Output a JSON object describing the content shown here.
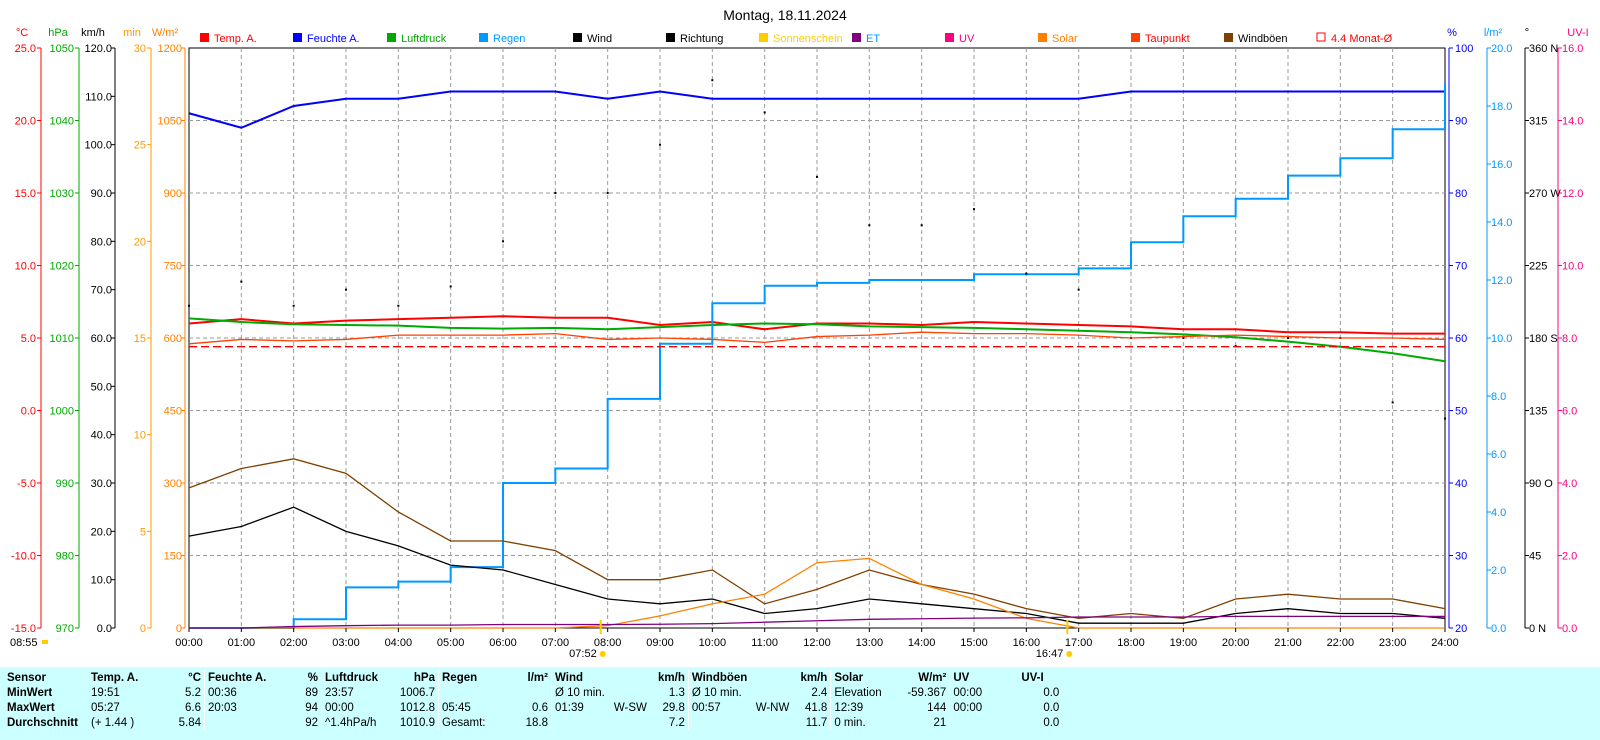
{
  "title": "Montag, 18.11.2024",
  "colors": {
    "temp": "#ff0000",
    "humidity": "#0000ff",
    "pressure": "#00aa00",
    "rain": "#0099ff",
    "wind": "#000000",
    "direction": "#000000",
    "sunshine": "#ffcc00",
    "et": "#800080",
    "uv": "#ff0080",
    "solar": "#ff8000",
    "dewpoint": "#ff4000",
    "gust": "#804000",
    "avg": "#ff0000",
    "stats_bg": "#ccffff"
  },
  "legend": [
    {
      "label": "Temp. A.",
      "color": "#ff0000",
      "label_color": "#ff0000"
    },
    {
      "label": "Feuchte A.",
      "color": "#0000ff",
      "label_color": "#0000ff"
    },
    {
      "label": "Luftdruck",
      "color": "#00aa00",
      "label_color": "#00aa00"
    },
    {
      "label": "Regen",
      "color": "#0099ff",
      "label_color": "#0099ff"
    },
    {
      "label": "Wind",
      "color": "#000000",
      "label_color": "#000000"
    },
    {
      "label": "Richtung",
      "color": "#000000",
      "label_color": "#000000"
    },
    {
      "label": "Sonnenschein",
      "color": "#ffcc00",
      "label_color": "#ffcc00"
    },
    {
      "label": "ET",
      "color": "#800080",
      "label_color": "#0099ff"
    },
    {
      "label": "UV",
      "color": "#ff0080",
      "label_color": "#ff0080"
    },
    {
      "label": "Solar",
      "color": "#ff8000",
      "label_color": "#ff8000"
    },
    {
      "label": "Taupunkt",
      "color": "#ff4000",
      "label_color": "#ff0000"
    },
    {
      "label": "Windböen",
      "color": "#804000",
      "label_color": "#000000"
    },
    {
      "label": "4.4 Monat-Ø",
      "color": "#ff0000",
      "label_color": "#ff0000",
      "outline": true
    }
  ],
  "axes": {
    "temp": {
      "unit": "°C",
      "color": "#ff0000",
      "ticks": [
        "25.0",
        "20.0",
        "15.0",
        "10.0",
        "5.0",
        "0.0",
        "-5.0",
        "-10.0",
        "-15.0"
      ]
    },
    "pressure": {
      "unit": "hPa",
      "color": "#00aa00",
      "ticks": [
        "1050",
        "1040",
        "1030",
        "1020",
        "1010",
        "1000",
        "990",
        "980",
        "970"
      ]
    },
    "wind": {
      "unit": "km/h",
      "color": "#000000",
      "ticks": [
        "120.0",
        "110.0",
        "100.0",
        "90.0",
        "80.0",
        "70.0",
        "60.0",
        "50.0",
        "40.0",
        "30.0",
        "20.0",
        "10.0",
        "0.0"
      ]
    },
    "sunmin": {
      "unit": "min",
      "color": "#ff9900",
      "ticks": [
        "30",
        "25",
        "20",
        "15",
        "10",
        "5",
        "0"
      ]
    },
    "solar": {
      "unit": "W/m²",
      "color": "#ff8000",
      "ticks": [
        "1200",
        "1050",
        "900",
        "750",
        "600",
        "450",
        "300",
        "150",
        "0"
      ]
    },
    "humidity": {
      "unit": "%",
      "color": "#0000ff",
      "ticks": [
        "100",
        "90",
        "80",
        "70",
        "60",
        "50",
        "40",
        "30",
        "20"
      ]
    },
    "rain": {
      "unit": "l/m²",
      "color": "#0099ff",
      "ticks": [
        "20.0",
        "18.0",
        "16.0",
        "14.0",
        "12.0",
        "10.0",
        "8.0",
        "6.0",
        "4.0",
        "2.0",
        "0.0"
      ]
    },
    "direction": {
      "unit": "°",
      "color": "#000000",
      "ticks": [
        "360 N",
        "315",
        "270 W",
        "225",
        "180 S",
        "135",
        "90 O",
        "45",
        "0 N"
      ]
    },
    "uvi": {
      "unit": "UV-I",
      "color": "#ff0080",
      "ticks": [
        "16.0",
        "14.0",
        "12.0",
        "10.0",
        "8.0",
        "6.0",
        "4.0",
        "2.0",
        "0.0"
      ]
    }
  },
  "time_ticks": [
    "00:00",
    "01:00",
    "02:00",
    "03:00",
    "04:00",
    "05:00",
    "06:00",
    "07:00",
    "08:00",
    "09:00",
    "10:00",
    "11:00",
    "12:00",
    "13:00",
    "14:00",
    "15:00",
    "16:00",
    "17:00",
    "18:00",
    "19:00",
    "20:00",
    "21:00",
    "22:00",
    "23:00",
    "24:00"
  ],
  "sun_markers": {
    "daylength": "08:55",
    "sunrise": "07:52",
    "sunset": "16:47"
  },
  "chart_data": {
    "type": "line",
    "title": "Montag, 18.11.2024",
    "x": [
      0,
      1,
      2,
      3,
      4,
      5,
      6,
      7,
      8,
      9,
      10,
      11,
      12,
      13,
      14,
      15,
      16,
      17,
      18,
      19,
      20,
      21,
      22,
      23,
      24
    ],
    "series": [
      {
        "name": "Temp. A.",
        "axis": "temp",
        "values": [
          6.0,
          6.3,
          6.0,
          6.2,
          6.3,
          6.4,
          6.5,
          6.4,
          6.4,
          5.9,
          6.1,
          5.6,
          6.0,
          6.0,
          5.9,
          6.1,
          6.0,
          5.9,
          5.8,
          5.6,
          5.6,
          5.4,
          5.4,
          5.3,
          5.3
        ]
      },
      {
        "name": "Feuchte A.",
        "axis": "humidity",
        "values": [
          91,
          89,
          92,
          93,
          93,
          94,
          94,
          94,
          93,
          94,
          93,
          93,
          93,
          93,
          93,
          93,
          93,
          93,
          94,
          94,
          94,
          94,
          94,
          94,
          94
        ]
      },
      {
        "name": "Luftdruck",
        "axis": "pressure",
        "values": [
          1012.7,
          1012.2,
          1011.9,
          1011.8,
          1011.7,
          1011.4,
          1011.3,
          1011.4,
          1011.2,
          1011.5,
          1011.8,
          1012.0,
          1011.9,
          1011.6,
          1011.5,
          1011.4,
          1011.2,
          1011.0,
          1010.8,
          1010.5,
          1010.1,
          1009.5,
          1008.8,
          1007.9,
          1006.8
        ]
      },
      {
        "name": "Regen",
        "axis": "rain",
        "values": [
          0.0,
          0.0,
          0.3,
          1.4,
          1.6,
          2.1,
          5.0,
          5.5,
          7.9,
          9.8,
          11.2,
          11.8,
          11.9,
          12.0,
          12.0,
          12.2,
          12.2,
          12.4,
          13.3,
          14.2,
          14.8,
          15.6,
          16.2,
          17.2,
          18.8
        ]
      },
      {
        "name": "Wind",
        "axis": "wind",
        "values": [
          19,
          21,
          25,
          20,
          17,
          13,
          12,
          9,
          6,
          5,
          6,
          3,
          4,
          6,
          5,
          4,
          3,
          1,
          1,
          1,
          3,
          4,
          3,
          3,
          2
        ]
      },
      {
        "name": "Windböen",
        "axis": "wind",
        "values": [
          29,
          33,
          35,
          32,
          24,
          18,
          18,
          16,
          10,
          10,
          12,
          5,
          8,
          12,
          9,
          7,
          4,
          2,
          3,
          2,
          6,
          7,
          6,
          6,
          4
        ]
      },
      {
        "name": "Richtung",
        "axis": "direction",
        "values": [
          200,
          215,
          200,
          210,
          200,
          212,
          240,
          270,
          270,
          300,
          340,
          320,
          280,
          250,
          250,
          260,
          220,
          210,
          180,
          180,
          175,
          180,
          180,
          140,
          130
        ]
      },
      {
        "name": "Solar",
        "axis": "solar",
        "values": [
          0,
          0,
          0,
          0,
          0,
          0,
          0,
          0,
          5,
          25,
          50,
          70,
          135,
          144,
          90,
          60,
          20,
          0,
          0,
          0,
          0,
          0,
          0,
          0,
          0
        ]
      },
      {
        "name": "Taupunkt",
        "axis": "temp",
        "values": [
          4.6,
          4.9,
          4.8,
          4.9,
          5.2,
          5.2,
          5.2,
          5.3,
          4.9,
          5.0,
          4.9,
          4.7,
          5.1,
          5.2,
          5.4,
          5.3,
          5.3,
          5.2,
          5.0,
          5.1,
          5.2,
          5.1,
          5.0,
          5.0,
          4.9
        ]
      },
      {
        "name": "ET",
        "axis": "rain",
        "values": [
          0.0,
          0.0,
          0.05,
          0.08,
          0.1,
          0.1,
          0.12,
          0.12,
          0.12,
          0.13,
          0.15,
          0.2,
          0.25,
          0.3,
          0.32,
          0.34,
          0.35,
          0.38,
          0.38,
          0.38,
          0.4,
          0.4,
          0.4,
          0.4,
          0.4
        ]
      },
      {
        "name": "4.4 Monat-Ø",
        "axis": "temp",
        "values": [
          4.4,
          4.4,
          4.4,
          4.4,
          4.4,
          4.4,
          4.4,
          4.4,
          4.4,
          4.4,
          4.4,
          4.4,
          4.4,
          4.4,
          4.4,
          4.4,
          4.4,
          4.4,
          4.4,
          4.4,
          4.4,
          4.4,
          4.4,
          4.4,
          4.4
        ]
      }
    ],
    "ylim_temp": [
      -15,
      25
    ],
    "ylim_humidity": [
      20,
      100
    ],
    "ylim_pressure": [
      970,
      1050
    ],
    "ylim_rain": [
      0,
      20
    ],
    "ylim_wind": [
      0,
      120
    ],
    "ylim_solar": [
      0,
      1200
    ],
    "ylim_direction": [
      0,
      360
    ],
    "grid": true,
    "legend_position": "top"
  },
  "stats": {
    "headers": {
      "sensor": "Sensor",
      "temp": "Temp. A.",
      "temp_unit": "°C",
      "hum": "Feuchte A.",
      "hum_unit": "%",
      "press": "Luftdruck",
      "press_unit": "hPa",
      "rain": "Regen",
      "rain_unit": "l/m²",
      "wind": "Wind",
      "wind_unit": "km/h",
      "gust": "Windböen",
      "gust_unit": "km/h",
      "solar": "Solar",
      "solar_unit": "W/m²",
      "uv": "UV",
      "uvi": "UV-I"
    },
    "rows": [
      {
        "label": "MinWert",
        "temp_t": "19:51",
        "temp_v": "5.2",
        "hum_t": "00:36",
        "hum_v": "89",
        "press_t": "23:57",
        "press_v": "1006.7",
        "rain_t": "",
        "rain_v": "",
        "wind_t": "Ø 10 min.",
        "wind_d": "",
        "wind_v": "1.3",
        "gust_t": "Ø 10 min.",
        "gust_d": "",
        "gust_v": "2.4",
        "solar_t": "Elevation",
        "solar_v": "-59.367",
        "uv_t": "00:00",
        "uv_v": "0.0"
      },
      {
        "label": "MaxWert",
        "temp_t": "05:27",
        "temp_v": "6.6",
        "hum_t": "20:03",
        "hum_v": "94",
        "press_t": "00:00",
        "press_v": "1012.8",
        "rain_t": "05:45",
        "rain_v": "0.6",
        "wind_t": "01:39",
        "wind_d": "W-SW",
        "wind_v": "29.8",
        "gust_t": "00:57",
        "gust_d": "W-NW",
        "gust_v": "41.8",
        "solar_t": "12:39",
        "solar_v": "144",
        "uv_t": "00:00",
        "uv_v": "0.0"
      },
      {
        "label": "Durchschnitt",
        "temp_t": "(+ 1.44 )",
        "temp_v": "5.84",
        "hum_t": "",
        "hum_v": "92",
        "press_t": "^1.4hPa/h",
        "press_v": "1010.9",
        "rain_t": "Gesamt:",
        "rain_v": "18.8",
        "wind_t": "",
        "wind_d": "",
        "wind_v": "7.2",
        "gust_t": "",
        "gust_d": "",
        "gust_v": "11.7",
        "solar_t": "0 min.",
        "solar_v": "21",
        "uv_t": "",
        "uv_v": "0.0"
      }
    ]
  }
}
